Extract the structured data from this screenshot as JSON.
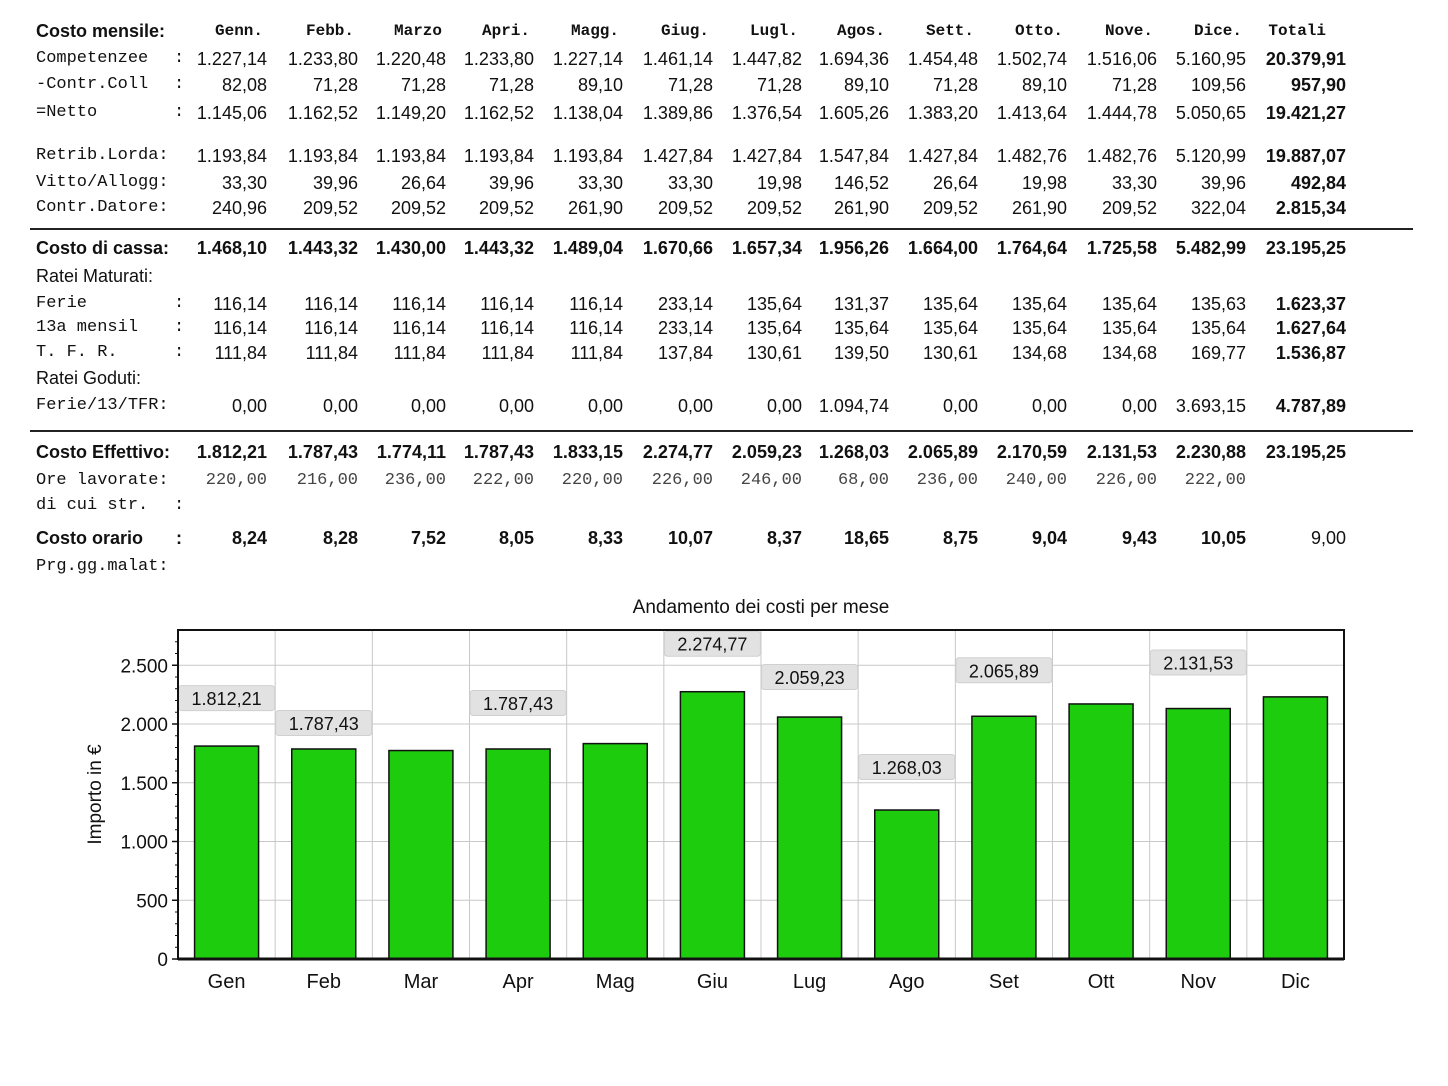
{
  "table": {
    "title": "Costo mensile:",
    "months": [
      "Genn.",
      "Febb.",
      "Marzo",
      "Apri.",
      "Magg.",
      "Giug.",
      "Lugl.",
      "Agos.",
      "Sett.",
      "Otto.",
      "Nove.",
      "Dice."
    ],
    "total_header": "Totali",
    "rows": [
      {
        "label": "Competenzee",
        "colon": ":",
        "values": [
          "1.227,14",
          "1.233,80",
          "1.220,48",
          "1.233,80",
          "1.227,14",
          "1.461,14",
          "1.447,82",
          "1.694,36",
          "1.454,48",
          "1.502,74",
          "1.516,06",
          "5.160,95"
        ],
        "total": "20.379,91"
      },
      {
        "label": "-Contr.Coll",
        "colon": ":",
        "values": [
          "82,08",
          "71,28",
          "71,28",
          "71,28",
          "89,10",
          "71,28",
          "71,28",
          "89,10",
          "71,28",
          "89,10",
          "71,28",
          "109,56"
        ],
        "total": "957,90"
      },
      {
        "label": "=Netto",
        "colon": ":",
        "values": [
          "1.145,06",
          "1.162,52",
          "1.149,20",
          "1.162,52",
          "1.138,04",
          "1.389,86",
          "1.376,54",
          "1.605,26",
          "1.383,20",
          "1.413,64",
          "1.444,78",
          "5.050,65"
        ],
        "total": "19.421,27"
      },
      {
        "label": "Retrib.Lorda:",
        "colon": "",
        "values": [
          "1.193,84",
          "1.193,84",
          "1.193,84",
          "1.193,84",
          "1.193,84",
          "1.427,84",
          "1.427,84",
          "1.547,84",
          "1.427,84",
          "1.482,76",
          "1.482,76",
          "5.120,99"
        ],
        "total": "19.887,07"
      },
      {
        "label": "Vitto/Allogg:",
        "colon": "",
        "values": [
          "33,30",
          "39,96",
          "26,64",
          "39,96",
          "33,30",
          "33,30",
          "19,98",
          "146,52",
          "26,64",
          "19,98",
          "33,30",
          "39,96"
        ],
        "total": "492,84"
      },
      {
        "label": "Contr.Datore:",
        "colon": "",
        "values": [
          "240,96",
          "209,52",
          "209,52",
          "209,52",
          "261,90",
          "209,52",
          "209,52",
          "261,90",
          "209,52",
          "261,90",
          "209,52",
          "322,04"
        ],
        "total": "2.815,34"
      },
      {
        "label": "Costo di cassa:",
        "colon": "",
        "values": [
          "1.468,10",
          "1.443,32",
          "1.430,00",
          "1.443,32",
          "1.489,04",
          "1.670,66",
          "1.657,34",
          "1.956,26",
          "1.664,00",
          "1.764,64",
          "1.725,58",
          "5.482,99"
        ],
        "total": "23.195,25"
      },
      {
        "label": "Ratei Maturati:",
        "colon": "",
        "values": [],
        "total": ""
      },
      {
        "label": "Ferie",
        "colon": ":",
        "values": [
          "116,14",
          "116,14",
          "116,14",
          "116,14",
          "116,14",
          "233,14",
          "135,64",
          "131,37",
          "135,64",
          "135,64",
          "135,64",
          "135,63"
        ],
        "total": "1.623,37"
      },
      {
        "label": "13a mensil",
        "colon": ":",
        "values": [
          "116,14",
          "116,14",
          "116,14",
          "116,14",
          "116,14",
          "233,14",
          "135,64",
          "135,64",
          "135,64",
          "135,64",
          "135,64",
          "135,64"
        ],
        "total": "1.627,64"
      },
      {
        "label": "T. F. R.",
        "colon": ":",
        "values": [
          "111,84",
          "111,84",
          "111,84",
          "111,84",
          "111,84",
          "137,84",
          "130,61",
          "139,50",
          "130,61",
          "134,68",
          "134,68",
          "169,77"
        ],
        "total": "1.536,87"
      },
      {
        "label": "Ratei Goduti:",
        "colon": "",
        "values": [],
        "total": ""
      },
      {
        "label": "Ferie/13/TFR:",
        "colon": "",
        "values": [
          "0,00",
          "0,00",
          "0,00",
          "0,00",
          "0,00",
          "0,00",
          "0,00",
          "1.094,74",
          "0,00",
          "0,00",
          "0,00",
          "3.693,15"
        ],
        "total": "4.787,89"
      },
      {
        "label": "Costo Effettivo:",
        "colon": "",
        "values": [
          "1.812,21",
          "1.787,43",
          "1.774,11",
          "1.787,43",
          "1.833,15",
          "2.274,77",
          "2.059,23",
          "1.268,03",
          "2.065,89",
          "2.170,59",
          "2.131,53",
          "2.230,88"
        ],
        "total": "23.195,25"
      },
      {
        "label": "Ore lavorate:",
        "colon": "",
        "values": [
          "220,00",
          "216,00",
          "236,00",
          "222,00",
          "220,00",
          "226,00",
          "246,00",
          "68,00",
          "236,00",
          "240,00",
          "226,00",
          "222,00"
        ],
        "total": ""
      },
      {
        "label": "di cui str.",
        "colon": ":",
        "values": [],
        "total": ""
      },
      {
        "label": "Costo orario",
        "colon": ":",
        "values": [
          "8,24",
          "8,28",
          "7,52",
          "8,05",
          "8,33",
          "10,07",
          "8,37",
          "18,65",
          "8,75",
          "9,04",
          "9,43",
          "10,05"
        ],
        "total": "9,00"
      },
      {
        "label": "Prg.gg.malat:",
        "colon": "",
        "values": [],
        "total": ""
      }
    ]
  },
  "chart_data": {
    "type": "bar",
    "title": "Andamento dei costi per mese",
    "xlabel": "",
    "ylabel": "Importo in €",
    "categories": [
      "Gen",
      "Feb",
      "Mar",
      "Apr",
      "Mag",
      "Giu",
      "Lug",
      "Ago",
      "Set",
      "Ott",
      "Nov",
      "Dic"
    ],
    "values": [
      1812.21,
      1787.43,
      1774.11,
      1787.43,
      1833.15,
      2274.77,
      2059.23,
      1268.03,
      2065.89,
      2170.59,
      2131.53,
      2230.88
    ],
    "data_labels": [
      "1.812,21",
      "1.787,43",
      "",
      "1.787,43",
      "",
      "2.274,77",
      "2.059,23",
      "1.268,03",
      "2.065,89",
      "",
      "2.131,53",
      ""
    ],
    "ylim": [
      0,
      2800
    ],
    "yticks": [
      0,
      500,
      1000,
      1500,
      2000,
      2500
    ],
    "ytick_labels": [
      "0",
      "500",
      "1.000",
      "1.500",
      "2.000",
      "2.500"
    ],
    "grid": true,
    "bar_color": "#1ecc0e"
  }
}
